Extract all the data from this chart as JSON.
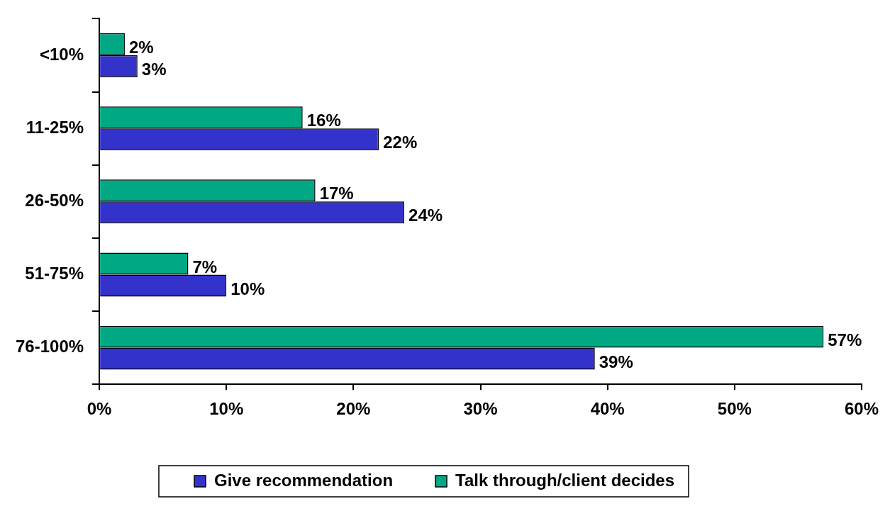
{
  "chart_data": {
    "type": "bar",
    "orientation": "horizontal",
    "categories": [
      "<10%",
      "11-25%",
      "26-50%",
      "51-75%",
      "76-100%"
    ],
    "series": [
      {
        "name": "Give recommendation",
        "color": "#3333cc",
        "values": [
          3,
          22,
          24,
          10,
          39
        ],
        "value_labels": [
          "3%",
          "22%",
          "24%",
          "10%",
          "39%"
        ]
      },
      {
        "name": "Talk through/client decides",
        "color": "#00a884",
        "values": [
          2,
          16,
          17,
          7,
          57
        ],
        "value_labels": [
          "2%",
          "16%",
          "17%",
          "7%",
          "57%"
        ]
      }
    ],
    "xlim": [
      0,
      60
    ],
    "xticks": [
      {
        "value": 0,
        "label": "0%"
      },
      {
        "value": 10,
        "label": "10%"
      },
      {
        "value": 20,
        "label": "20%"
      },
      {
        "value": 30,
        "label": "30%"
      },
      {
        "value": 40,
        "label": "40%"
      },
      {
        "value": 50,
        "label": "50%"
      },
      {
        "value": 60,
        "label": "60%"
      }
    ],
    "grid": false,
    "legend": "bottom"
  }
}
